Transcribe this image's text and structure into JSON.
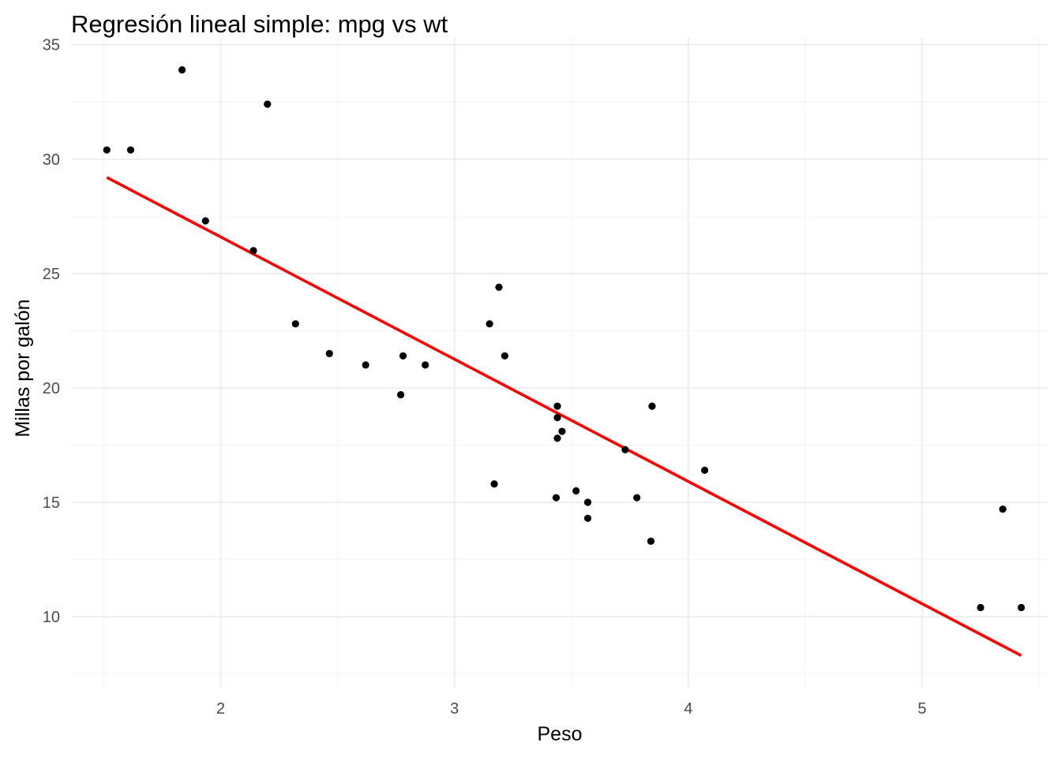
{
  "chart_data": {
    "type": "scatter",
    "title": "Regresión lineal simple: mpg vs wt",
    "xlabel": "Peso",
    "ylabel": "Millas por galón",
    "xlim": [
      1.36,
      5.54
    ],
    "ylim": [
      6.9,
      35.3
    ],
    "x_ticks": [
      2,
      3,
      4,
      5
    ],
    "y_ticks": [
      10,
      15,
      20,
      25,
      30,
      35
    ],
    "grid": true,
    "legend": "none",
    "points": [
      {
        "x": 2.62,
        "y": 21.0
      },
      {
        "x": 2.875,
        "y": 21.0
      },
      {
        "x": 2.32,
        "y": 22.8
      },
      {
        "x": 3.215,
        "y": 21.4
      },
      {
        "x": 3.44,
        "y": 18.7
      },
      {
        "x": 3.46,
        "y": 18.1
      },
      {
        "x": 3.57,
        "y": 14.3
      },
      {
        "x": 3.19,
        "y": 24.4
      },
      {
        "x": 3.15,
        "y": 22.8
      },
      {
        "x": 3.44,
        "y": 19.2
      },
      {
        "x": 3.44,
        "y": 17.8
      },
      {
        "x": 4.07,
        "y": 16.4
      },
      {
        "x": 3.73,
        "y": 17.3
      },
      {
        "x": 3.78,
        "y": 15.2
      },
      {
        "x": 5.25,
        "y": 10.4
      },
      {
        "x": 5.424,
        "y": 10.4
      },
      {
        "x": 5.345,
        "y": 14.7
      },
      {
        "x": 2.2,
        "y": 32.4
      },
      {
        "x": 1.615,
        "y": 30.4
      },
      {
        "x": 1.835,
        "y": 33.9
      },
      {
        "x": 2.465,
        "y": 21.5
      },
      {
        "x": 3.52,
        "y": 15.5
      },
      {
        "x": 3.435,
        "y": 15.2
      },
      {
        "x": 3.84,
        "y": 13.3
      },
      {
        "x": 3.845,
        "y": 19.2
      },
      {
        "x": 1.935,
        "y": 27.3
      },
      {
        "x": 2.14,
        "y": 26.0
      },
      {
        "x": 1.513,
        "y": 30.4
      },
      {
        "x": 3.17,
        "y": 15.8
      },
      {
        "x": 2.77,
        "y": 19.7
      },
      {
        "x": 3.57,
        "y": 15.0
      },
      {
        "x": 2.78,
        "y": 21.4
      }
    ],
    "fit_line": {
      "color": "#ff0000",
      "intercept": 37.285,
      "slope": -5.344,
      "x_range": [
        1.513,
        5.424
      ]
    },
    "point_color": "#000000"
  }
}
